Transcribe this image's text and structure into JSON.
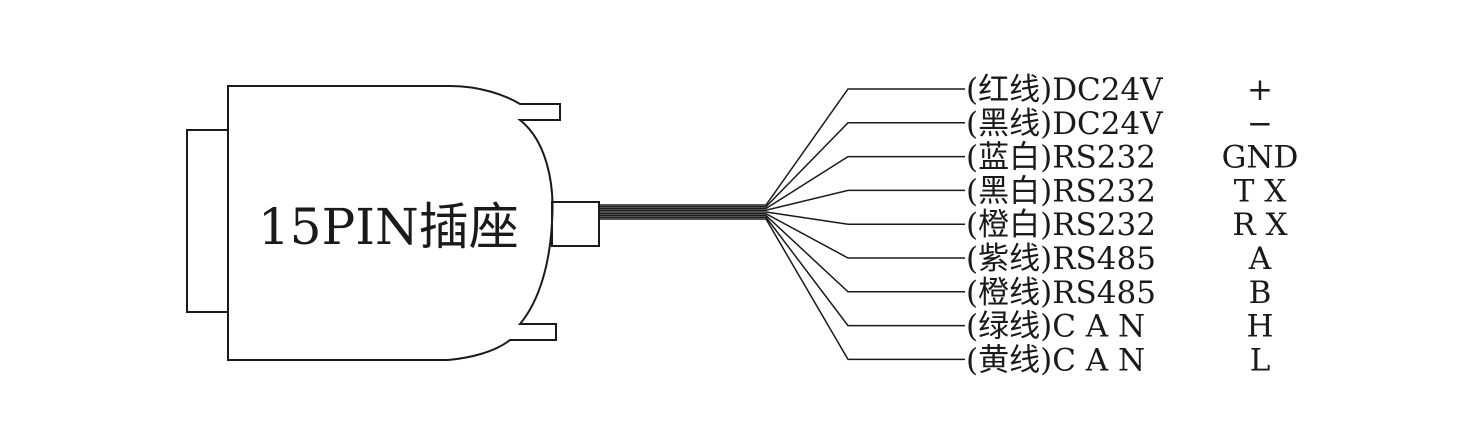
{
  "connector": {
    "label": "15PIN插座"
  },
  "wires": [
    {
      "label": "(红线)DC24V",
      "signal": "+"
    },
    {
      "label": "(黑线)DC24V",
      "signal": "−"
    },
    {
      "label": "(蓝白)RS232",
      "signal": "GND"
    },
    {
      "label": "(黑白)RS232",
      "signal": "T X"
    },
    {
      "label": "(橙白)RS232",
      "signal": "R X"
    },
    {
      "label": "(紫线)RS485",
      "signal": "A"
    },
    {
      "label": "(橙线)RS485",
      "signal": "B"
    },
    {
      "label": "(绿线)C A N",
      "signal": "H"
    },
    {
      "label": "(黄线)C A N",
      "signal": "L"
    }
  ]
}
